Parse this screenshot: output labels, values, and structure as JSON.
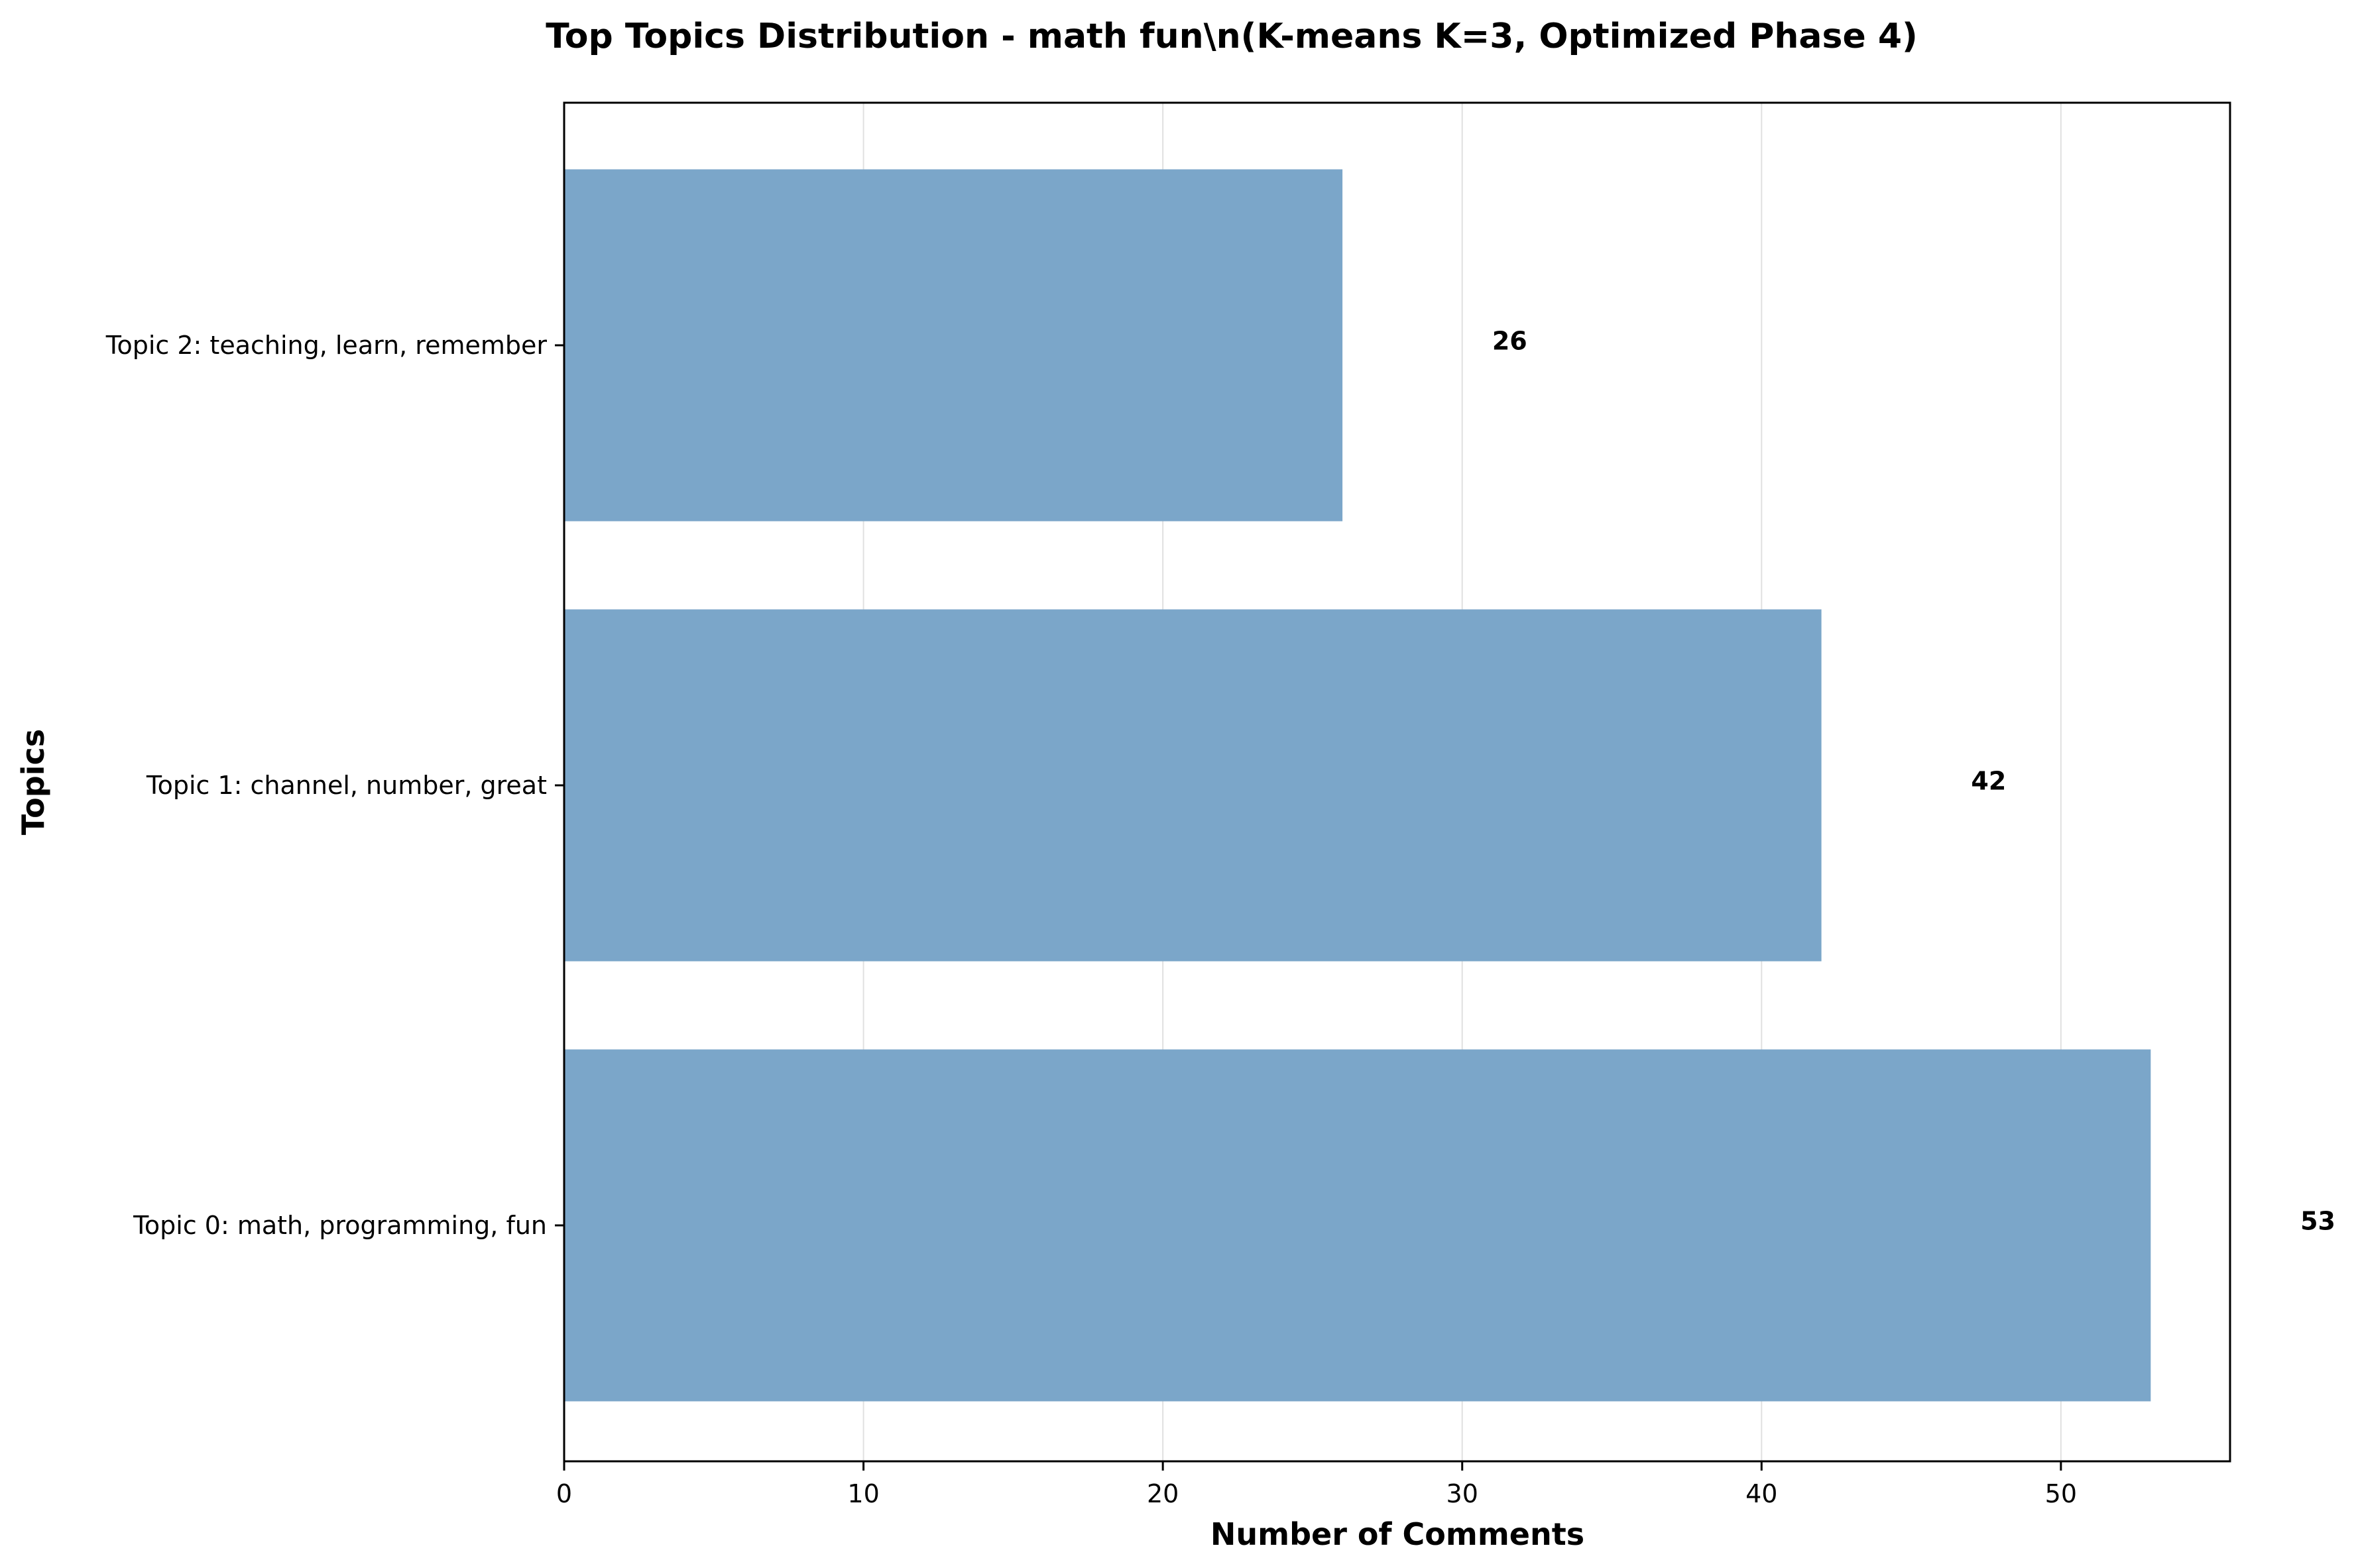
{
  "chart_data": {
    "type": "bar",
    "orientation": "horizontal",
    "title": "Top Topics Distribution - math fun\\n(K-means K=3, Optimized Phase 4)",
    "xlabel": "Number of Comments",
    "ylabel": "Topics",
    "categories": [
      "Topic 0: math, programming, fun",
      "Topic 1: channel, number, great",
      "Topic 2: teaching, learn, remember"
    ],
    "values": [
      53,
      42,
      26
    ],
    "data_labels": [
      "53",
      "42",
      "26"
    ],
    "xlim": [
      0,
      55.65
    ],
    "xticks": [
      0,
      10,
      20,
      30,
      40,
      50
    ],
    "xtick_labels": [
      "0",
      "10",
      "20",
      "30",
      "40",
      "50"
    ],
    "grid": "x",
    "legend": "none",
    "bar_color": "#7ba6c9",
    "grid_color": "#e0e0e0"
  }
}
